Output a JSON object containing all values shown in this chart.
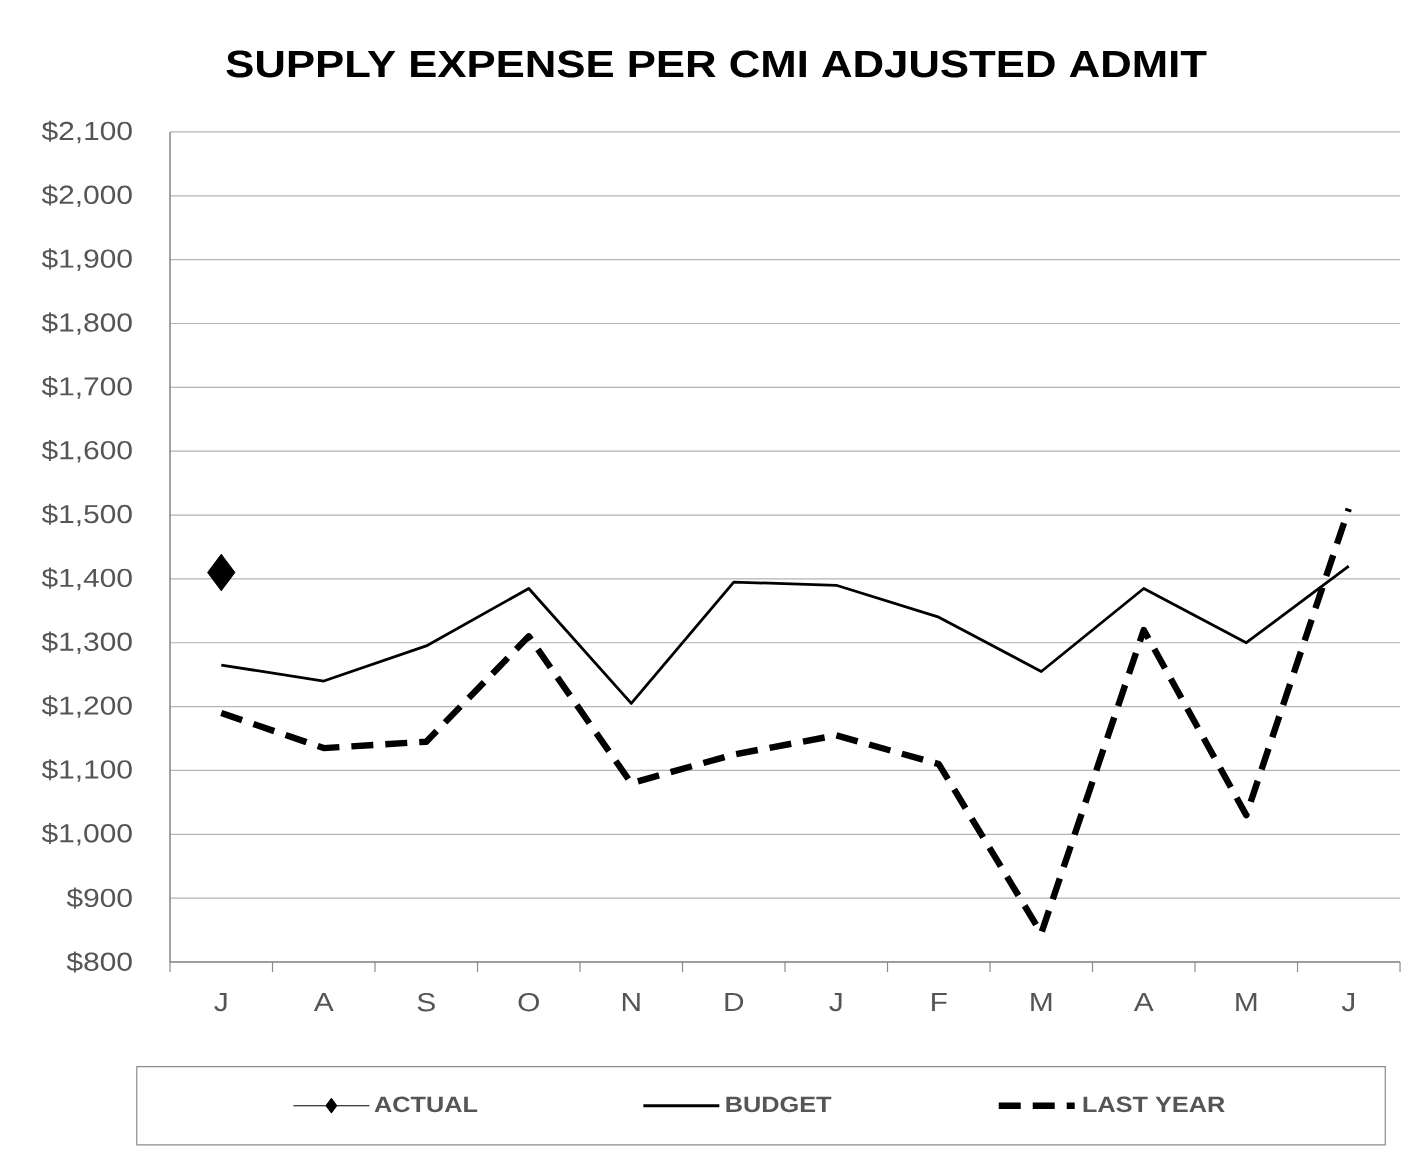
{
  "chart_data": {
    "type": "line",
    "title": "SUPPLY EXPENSE PER CMI ADJUSTED ADMIT",
    "categories": [
      "J",
      "A",
      "S",
      "O",
      "N",
      "D",
      "J",
      "F",
      "M",
      "A",
      "M",
      "J"
    ],
    "series": [
      {
        "name": "ACTUAL",
        "color": "#000000",
        "marker": "diamond",
        "line_style": "solid",
        "values": [
          1410,
          null,
          null,
          null,
          null,
          null,
          null,
          null,
          null,
          null,
          null,
          null
        ]
      },
      {
        "name": "BUDGET",
        "color": "#000000",
        "marker": "none",
        "line_style": "solid",
        "values": [
          1265,
          1240,
          1295,
          1385,
          1205,
          1395,
          1390,
          1340,
          1255,
          1385,
          1300,
          1420
        ]
      },
      {
        "name": "LAST YEAR",
        "color": "#000000",
        "marker": "none",
        "line_style": "dashed",
        "values": [
          1190,
          1135,
          1145,
          1310,
          1080,
          1125,
          1155,
          1110,
          845,
          1320,
          1030,
          1510
        ]
      }
    ],
    "ylim": [
      800,
      2100
    ],
    "yticks": [
      {
        "value": 800,
        "label": "$800"
      },
      {
        "value": 900,
        "label": "$900"
      },
      {
        "value": 1000,
        "label": "$1,000"
      },
      {
        "value": 1100,
        "label": "$1,100"
      },
      {
        "value": 1200,
        "label": "$1,200"
      },
      {
        "value": 1300,
        "label": "$1,300"
      },
      {
        "value": 1400,
        "label": "$1,400"
      },
      {
        "value": 1500,
        "label": "$1,500"
      },
      {
        "value": 1600,
        "label": "$1,600"
      },
      {
        "value": 1700,
        "label": "$1,700"
      },
      {
        "value": 1800,
        "label": "$1,800"
      },
      {
        "value": 1900,
        "label": "$1,900"
      },
      {
        "value": 2000,
        "label": "$2,000"
      },
      {
        "value": 2100,
        "label": "$2,100"
      }
    ],
    "grid": "y",
    "legend": "bottom"
  }
}
